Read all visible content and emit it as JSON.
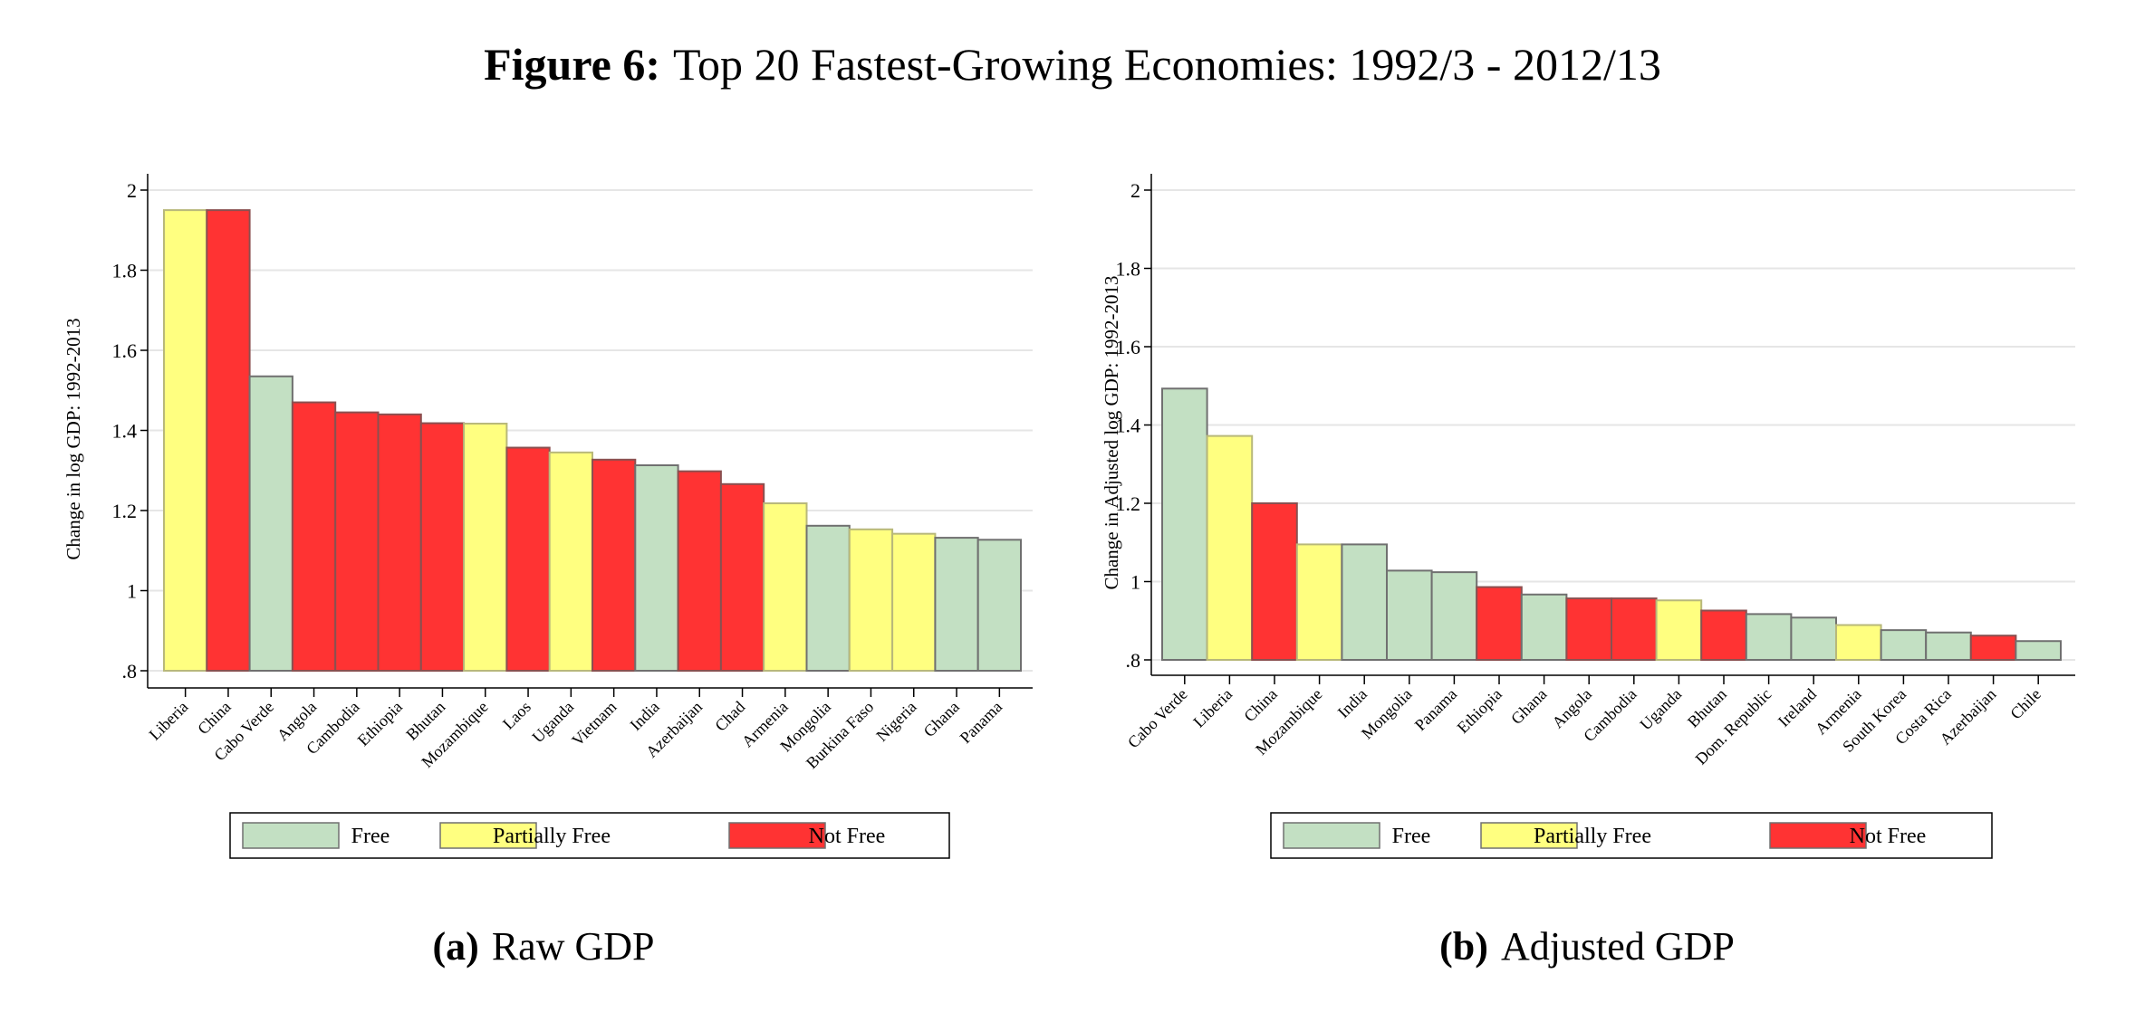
{
  "figure_title": {
    "bold": "Figure 6:",
    "text": "Top 20 Fastest-Growing Economies: 1992/3 - 2012/13"
  },
  "colors": {
    "Free": "#c3e0c3",
    "Partially Free": "#ffff80",
    "Not Free": "#ff3333"
  },
  "chart_data": [
    {
      "type": "bar",
      "caption_bold": "(a)",
      "caption": "Raw GDP",
      "ylabel": "Change in log GDP: 1992-2013",
      "xlabel": "",
      "ylim": [
        0.8,
        2.0
      ],
      "yticks": [
        0.8,
        1.0,
        1.2,
        1.4,
        1.6,
        1.8,
        2.0
      ],
      "ytick_labels": [
        ".8",
        "1",
        "1.2",
        "1.4",
        "1.6",
        "1.8",
        "2"
      ],
      "grid": true,
      "legend": {
        "position": "bottom",
        "entries": [
          "Free",
          "Partially Free",
          "Not Free"
        ]
      },
      "categories": [
        "Liberia",
        "China",
        "Cabo Verde",
        "Angola",
        "Cambodia",
        "Ethiopia",
        "Bhutan",
        "Mozambique",
        "Laos",
        "Uganda",
        "Vietnam",
        "India",
        "Azerbaijan",
        "Chad",
        "Armenia",
        "Mongolia",
        "Burkina Faso",
        "Nigeria",
        "Ghana",
        "Panama"
      ],
      "values": [
        1.95,
        1.95,
        1.535,
        1.47,
        1.445,
        1.44,
        1.418,
        1.417,
        1.357,
        1.345,
        1.327,
        1.313,
        1.298,
        1.266,
        1.218,
        1.162,
        1.153,
        1.142,
        1.132,
        1.127
      ],
      "status": [
        "Partially Free",
        "Not Free",
        "Free",
        "Not Free",
        "Not Free",
        "Not Free",
        "Not Free",
        "Partially Free",
        "Not Free",
        "Partially Free",
        "Not Free",
        "Free",
        "Not Free",
        "Not Free",
        "Partially Free",
        "Free",
        "Partially Free",
        "Partially Free",
        "Free",
        "Free"
      ]
    },
    {
      "type": "bar",
      "caption_bold": "(b)",
      "caption": "Adjusted GDP",
      "ylabel": "Change in Adjusted log GDP: 1992-2013",
      "xlabel": "",
      "ylim": [
        0.8,
        2.0
      ],
      "yticks": [
        0.8,
        1.0,
        1.2,
        1.4,
        1.6,
        1.8,
        2.0
      ],
      "ytick_labels": [
        ".8",
        "1",
        "1.2",
        "1.4",
        "1.6",
        "1.8",
        "2"
      ],
      "grid": true,
      "legend": {
        "position": "bottom",
        "entries": [
          "Free",
          "Partially Free",
          "Not Free"
        ]
      },
      "categories": [
        "Cabo Verde",
        "Liberia",
        "China",
        "Mozambique",
        "India",
        "Mongolia",
        "Panama",
        "Ethiopia",
        "Ghana",
        "Angola",
        "Cambodia",
        "Uganda",
        "Bhutan",
        "Dom. Republic",
        "Ireland",
        "Armenia",
        "South Korea",
        "Costa Rica",
        "Azerbaijan",
        "Chile"
      ],
      "values": [
        1.493,
        1.372,
        1.2,
        1.095,
        1.095,
        1.028,
        1.024,
        0.986,
        0.967,
        0.957,
        0.957,
        0.952,
        0.926,
        0.917,
        0.908,
        0.889,
        0.876,
        0.87,
        0.862,
        0.848
      ],
      "status": [
        "Free",
        "Partially Free",
        "Not Free",
        "Partially Free",
        "Free",
        "Free",
        "Free",
        "Not Free",
        "Free",
        "Not Free",
        "Not Free",
        "Partially Free",
        "Not Free",
        "Free",
        "Free",
        "Partially Free",
        "Free",
        "Free",
        "Not Free",
        "Free"
      ]
    }
  ]
}
